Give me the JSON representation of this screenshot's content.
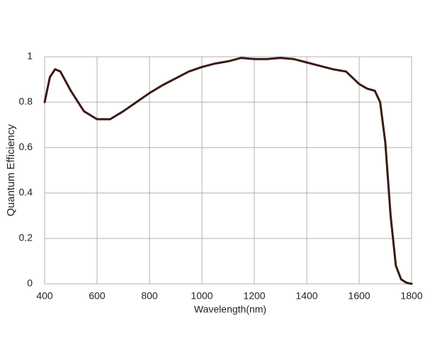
{
  "chart_data": {
    "type": "line",
    "x_label": "Wavelength(nm)",
    "y_label": "Quantum Efficiency",
    "x": [
      400,
      420,
      440,
      460,
      500,
      550,
      600,
      650,
      700,
      750,
      800,
      850,
      900,
      950,
      1000,
      1050,
      1100,
      1150,
      1200,
      1250,
      1300,
      1350,
      1400,
      1450,
      1500,
      1550,
      1600,
      1630,
      1660,
      1680,
      1700,
      1720,
      1740,
      1760,
      1780,
      1800
    ],
    "values": [
      0.8,
      0.91,
      0.945,
      0.935,
      0.85,
      0.76,
      0.725,
      0.725,
      0.76,
      0.8,
      0.84,
      0.875,
      0.905,
      0.935,
      0.955,
      0.97,
      0.98,
      0.995,
      0.99,
      0.99,
      0.995,
      0.99,
      0.975,
      0.96,
      0.945,
      0.935,
      0.88,
      0.86,
      0.85,
      0.8,
      0.62,
      0.3,
      0.08,
      0.02,
      0.005,
      0
    ],
    "color": "#3a1a14",
    "xlim": [
      400,
      1800
    ],
    "xticks": [
      400,
      600,
      800,
      1000,
      1200,
      1400,
      1600,
      1800
    ],
    "ylim": [
      0,
      1
    ],
    "yticks": [
      0,
      0.2,
      0.4,
      0.6,
      0.8,
      1
    ],
    "grid": true
  }
}
